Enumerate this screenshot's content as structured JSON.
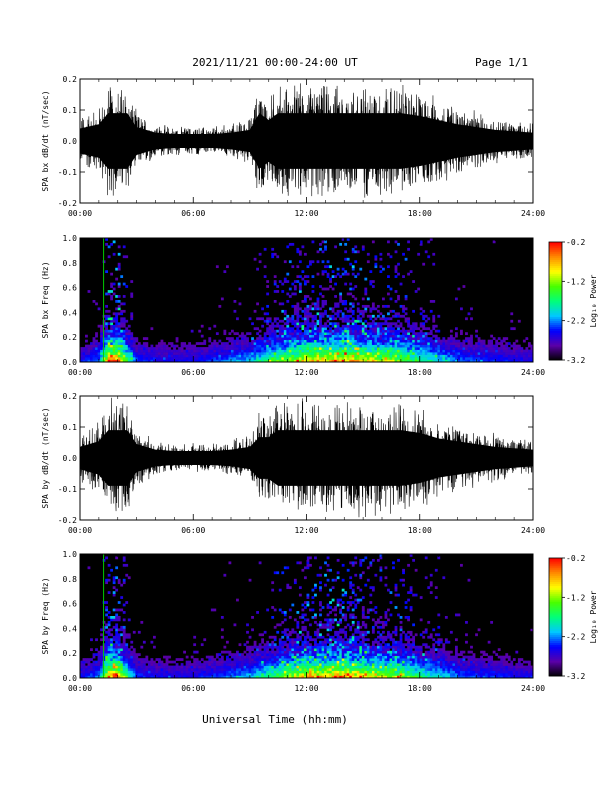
{
  "header": {
    "date_range": "2021/11/21  00:00-24:00 UT",
    "page": "Page 1/1"
  },
  "xlabel": "Universal Time (hh:mm)",
  "colorbar": {
    "label": "Log₁₀ Power",
    "ticks": [
      "-0.2",
      "-1.2",
      "-2.2",
      "-3.2"
    ],
    "range": [
      -3.2,
      -0.2
    ],
    "colors": [
      "#000000",
      "#5a00a8",
      "#0000ff",
      "#00c8ff",
      "#00ff7a",
      "#48ff00",
      "#ffff00",
      "#ff8c00",
      "#ff0000"
    ]
  },
  "chart_data": [
    {
      "type": "line",
      "ylabel": "SPA bx dB/dt (nT/sec)",
      "xlim": [
        0,
        24
      ],
      "ylim": [
        -0.2,
        0.2
      ],
      "x_ticks": [
        "00:00",
        "06:00",
        "12:00",
        "18:00",
        "24:00"
      ],
      "y_ticks": [
        "-0.2",
        "-0.1",
        "0.0",
        "0.1",
        "0.2"
      ],
      "series_color": "#000000",
      "envelope": {
        "hours": [
          0,
          1,
          1.5,
          2,
          2.5,
          3,
          4,
          5,
          6,
          7,
          8,
          9,
          9.5,
          10,
          10.5,
          11,
          12,
          13,
          14,
          15,
          16,
          17,
          18,
          19,
          20,
          21,
          22,
          23,
          24
        ],
        "amplitude": [
          0.09,
          0.12,
          0.2,
          0.2,
          0.2,
          0.1,
          0.06,
          0.05,
          0.05,
          0.05,
          0.06,
          0.08,
          0.2,
          0.15,
          0.2,
          0.2,
          0.2,
          0.2,
          0.2,
          0.2,
          0.2,
          0.2,
          0.18,
          0.15,
          0.12,
          0.1,
          0.08,
          0.07,
          0.06
        ]
      }
    },
    {
      "type": "heatmap",
      "ylabel": "SPA bx Freq (Hz)",
      "xlim": [
        0,
        24
      ],
      "ylim": [
        0,
        1.0
      ],
      "x_ticks": [
        "00:00",
        "06:00",
        "12:00",
        "18:00",
        "24:00"
      ],
      "y_ticks": [
        "0.0",
        "0.2",
        "0.4",
        "0.6",
        "0.8",
        "1.0"
      ],
      "activity": {
        "hours": [
          0,
          1,
          1.5,
          2,
          2.5,
          3,
          4,
          5,
          6,
          7,
          8,
          9,
          10,
          11,
          12,
          13,
          14,
          15,
          16,
          17,
          18,
          19,
          20,
          21,
          22,
          23,
          24
        ],
        "level": [
          0.25,
          0.35,
          0.9,
          0.95,
          0.6,
          0.3,
          0.25,
          0.25,
          0.25,
          0.3,
          0.35,
          0.4,
          0.55,
          0.7,
          0.85,
          0.85,
          0.9,
          0.8,
          0.75,
          0.7,
          0.55,
          0.45,
          0.35,
          0.3,
          0.3,
          0.25,
          0.25
        ]
      },
      "vertical_line": {
        "hour": 1.25,
        "color": "#00cc00"
      }
    },
    {
      "type": "line",
      "ylabel": "SPA by dB/dt (nT/sec)",
      "xlim": [
        0,
        24
      ],
      "ylim": [
        -0.2,
        0.2
      ],
      "x_ticks": [
        "00:00",
        "06:00",
        "12:00",
        "18:00",
        "24:00"
      ],
      "y_ticks": [
        "-0.2",
        "-0.1",
        "0.0",
        "0.1",
        "0.2"
      ],
      "series_color": "#000000",
      "envelope": {
        "hours": [
          0,
          1,
          1.5,
          2,
          2.5,
          3,
          4,
          5,
          6,
          7,
          8,
          9,
          9.5,
          10,
          10.5,
          11,
          12,
          13,
          14,
          15,
          16,
          17,
          18,
          19,
          20,
          21,
          22,
          23,
          24
        ],
        "amplitude": [
          0.08,
          0.12,
          0.2,
          0.2,
          0.2,
          0.1,
          0.06,
          0.05,
          0.05,
          0.05,
          0.06,
          0.08,
          0.15,
          0.15,
          0.2,
          0.2,
          0.2,
          0.2,
          0.2,
          0.2,
          0.2,
          0.2,
          0.18,
          0.14,
          0.12,
          0.1,
          0.08,
          0.07,
          0.06
        ]
      }
    },
    {
      "type": "heatmap",
      "ylabel": "SPA by Freq (Hz)",
      "xlim": [
        0,
        24
      ],
      "ylim": [
        0,
        1.0
      ],
      "x_ticks": [
        "00:00",
        "06:00",
        "12:00",
        "18:00",
        "24:00"
      ],
      "y_ticks": [
        "0.0",
        "0.2",
        "0.4",
        "0.6",
        "0.8",
        "1.0"
      ],
      "activity": {
        "hours": [
          0,
          1,
          1.5,
          2,
          2.5,
          3,
          4,
          5,
          6,
          7,
          8,
          9,
          10,
          11,
          12,
          13,
          14,
          15,
          16,
          17,
          18,
          19,
          20,
          21,
          22,
          23,
          24
        ],
        "level": [
          0.25,
          0.35,
          0.9,
          0.95,
          0.6,
          0.3,
          0.25,
          0.25,
          0.25,
          0.3,
          0.35,
          0.4,
          0.55,
          0.7,
          0.85,
          0.85,
          0.9,
          0.8,
          0.75,
          0.7,
          0.55,
          0.45,
          0.35,
          0.3,
          0.3,
          0.25,
          0.25
        ]
      },
      "vertical_line": {
        "hour": 1.25,
        "color": "#00cc00"
      }
    }
  ]
}
